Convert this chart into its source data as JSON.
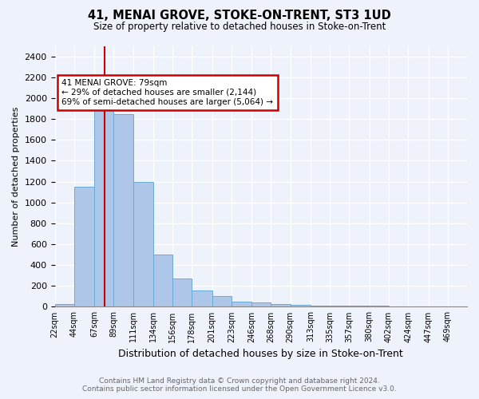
{
  "title": "41, MENAI GROVE, STOKE-ON-TRENT, ST3 1UD",
  "subtitle": "Size of property relative to detached houses in Stoke-on-Trent",
  "xlabel": "Distribution of detached houses by size in Stoke-on-Trent",
  "ylabel": "Number of detached properties",
  "footer1": "Contains HM Land Registry data © Crown copyright and database right 2024.",
  "footer2": "Contains public sector information licensed under the Open Government Licence v3.0.",
  "bin_labels": [
    "22sqm",
    "44sqm",
    "67sqm",
    "89sqm",
    "111sqm",
    "134sqm",
    "156sqm",
    "178sqm",
    "201sqm",
    "223sqm",
    "246sqm",
    "268sqm",
    "290sqm",
    "313sqm",
    "335sqm",
    "357sqm",
    "380sqm",
    "402sqm",
    "424sqm",
    "447sqm",
    "469sqm"
  ],
  "bar_heights": [
    30,
    1150,
    1950,
    1850,
    1200,
    500,
    270,
    155,
    100,
    50,
    40,
    30,
    15,
    10,
    10,
    8,
    12,
    5,
    3,
    2,
    0
  ],
  "bar_color": "#aec6e8",
  "bar_edgecolor": "#6aaad4",
  "ylim": [
    0,
    2500
  ],
  "yticks": [
    0,
    200,
    400,
    600,
    800,
    1000,
    1200,
    1400,
    1600,
    1800,
    2000,
    2200,
    2400
  ],
  "vline_x": 79,
  "vline_color": "#cc0000",
  "annotation_line1": "41 MENAI GROVE: 79sqm",
  "annotation_line2": "← 29% of detached houses are smaller (2,144)",
  "annotation_line3": "69% of semi-detached houses are larger (5,064) →",
  "annotation_box_color": "#cc0000",
  "bin_edges": [
    22,
    44,
    67,
    89,
    111,
    134,
    156,
    178,
    201,
    223,
    246,
    268,
    290,
    313,
    335,
    357,
    380,
    402,
    424,
    447,
    469,
    491
  ],
  "background_color": "#eef2fb",
  "grid_color": "#ffffff"
}
